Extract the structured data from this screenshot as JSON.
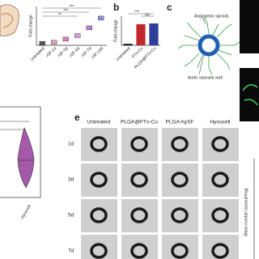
{
  "panel_a": {
    "y_label": "Fold change",
    "categories": [
      "Untreated",
      "rSF-1d",
      "rSF-3d",
      "rSF-5d",
      "rSF-7d",
      "rSF-14d"
    ],
    "values": [
      1,
      1.6,
      3.2,
      5,
      9,
      14
    ],
    "ylim": [
      0,
      20
    ],
    "colors": [
      "#555555",
      "#d9a1c8",
      "#e07fb3",
      "#c9a0dc",
      "#b77fd6",
      "#8a8fd6"
    ],
    "significance": [
      "***",
      "***",
      "**"
    ]
  },
  "panel_b": {
    "letter": "b",
    "y_label": "Fold change",
    "categories": [
      "Untreated",
      "FTn-Cu",
      "PLGA@FTn-Cu"
    ],
    "values": [
      1,
      14.5,
      15
    ],
    "ylim": [
      0,
      20
    ],
    "colors": [
      "#111111",
      "#c0282d",
      "#2c3e9a"
    ],
    "significance": [
      "***",
      "ns"
    ]
  },
  "panel_c": {
    "letter": "c",
    "labels": [
      "Angiogenic sprouts",
      "Aortic vascular wall"
    ]
  },
  "panel_d": {
    "x_label": "Hynocell"
  },
  "panel_e": {
    "letter": "e",
    "columns": [
      "Untreated",
      "PLGA@FTn-Cu",
      "PLGA-hySF",
      "Hynocell"
    ],
    "rows": [
      "1d",
      "3d",
      "5d",
      "7d"
    ],
    "y_label": "Mean number (sprout/ring)"
  }
}
